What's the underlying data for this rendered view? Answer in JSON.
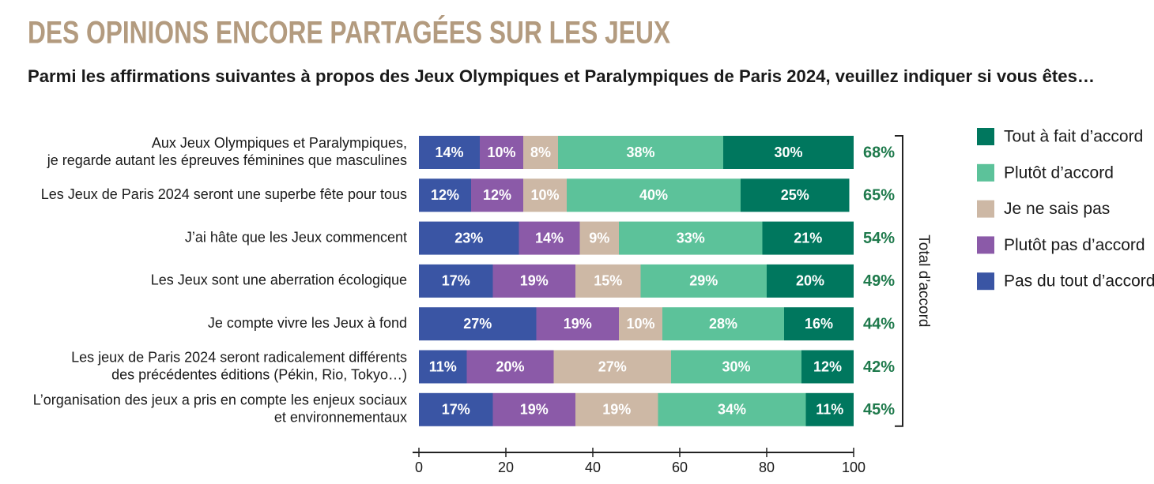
{
  "chart_data": {
    "type": "stacked-bar-horizontal",
    "title": "DES OPINIONS ENCORE PARTAGÉES SUR LES JEUX",
    "subtitle": "Parmi les affirmations suivantes à propos des Jeux Olympiques et Paralympiques de Paris 2024, veuillez indiquer si vous êtes…",
    "categories": [
      [
        "Aux Jeux Olympiques et Paralympiques,",
        "je regarde autant les épreuves féminines que masculines"
      ],
      [
        "Les Jeux de Paris 2024 seront une superbe fête pour tous"
      ],
      [
        "J’ai hâte que les Jeux commencent"
      ],
      [
        "Les Jeux sont une aberration écologique"
      ],
      [
        "Je compte vivre les Jeux à fond"
      ],
      [
        "Les jeux de Paris 2024 seront radicalement différents",
        "des précédentes éditions (Pékin, Rio, Tokyo…)"
      ],
      [
        "L’organisation des jeux a pris en compte les enjeux sociaux",
        "et environnementaux"
      ]
    ],
    "series": [
      {
        "name": "Pas du tout d’accord",
        "color": "#3a55a4",
        "values": [
          14,
          12,
          23,
          17,
          27,
          11,
          17
        ],
        "value_labels": [
          "14%",
          "12%",
          "23%",
          "17%",
          "27%",
          "11%",
          "17%"
        ]
      },
      {
        "name": "Plutôt pas d’accord",
        "color": "#8b5aa8",
        "values": [
          10,
          12,
          14,
          19,
          19,
          20,
          19
        ],
        "value_labels": [
          "10%",
          "12%",
          "14%",
          "19%",
          "19%",
          "20%",
          "19%"
        ]
      },
      {
        "name": "Je ne sais pas",
        "color": "#cdb8a5",
        "values": [
          8,
          10,
          9,
          15,
          10,
          27,
          19
        ],
        "value_labels": [
          "8%",
          "10%",
          "9%",
          "15%",
          "10%",
          "27%",
          "19%"
        ]
      },
      {
        "name": "Plutôt d’accord",
        "color": "#5cc29a",
        "values": [
          38,
          40,
          33,
          29,
          28,
          30,
          34
        ],
        "value_labels": [
          "38%",
          "40%",
          "33%",
          "29%",
          "28%",
          "30%",
          "34%"
        ]
      },
      {
        "name": "Tout à fait d’accord",
        "color": "#00775e",
        "values": [
          30,
          25,
          21,
          20,
          16,
          12,
          11
        ],
        "value_labels": [
          "30%",
          "25%",
          "21%",
          "20%",
          "16%",
          "12%",
          "11%"
        ]
      }
    ],
    "totals": {
      "label": "Total d’accord",
      "color": "#1f7a4c",
      "values": [
        68,
        65,
        54,
        49,
        44,
        42,
        45
      ],
      "value_labels": [
        "68%",
        "65%",
        "54%",
        "49%",
        "44%",
        "42%",
        "45%"
      ]
    },
    "xlim": [
      0,
      100
    ],
    "xticks": [
      0,
      20,
      40,
      60,
      80,
      100
    ]
  }
}
